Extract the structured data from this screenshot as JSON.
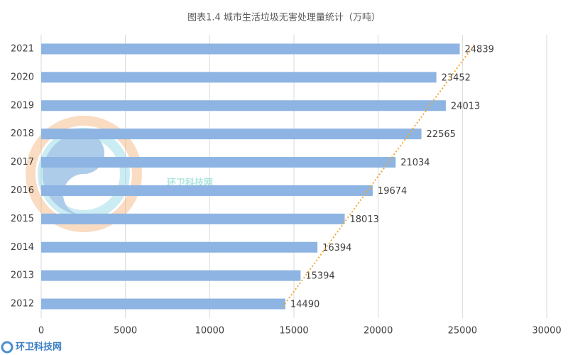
{
  "chart_data": {
    "type": "bar",
    "orientation": "horizontal",
    "title": "图表1.4 城市生活垃圾无害处理量统计（万吨）",
    "categories": [
      "2012",
      "2013",
      "2014",
      "2015",
      "2016",
      "2017",
      "2018",
      "2019",
      "2020",
      "2021"
    ],
    "values": [
      14490,
      15394,
      16394,
      18013,
      19674,
      21034,
      22565,
      24013,
      23452,
      24839
    ],
    "color": "#8db4e2",
    "xlim": [
      0,
      30000
    ],
    "xticks": [
      0,
      5000,
      10000,
      15000,
      20000,
      25000,
      30000
    ],
    "grid": true,
    "trendline": true,
    "trendline_color": "#f0a830"
  },
  "watermark": "环卫科技网"
}
